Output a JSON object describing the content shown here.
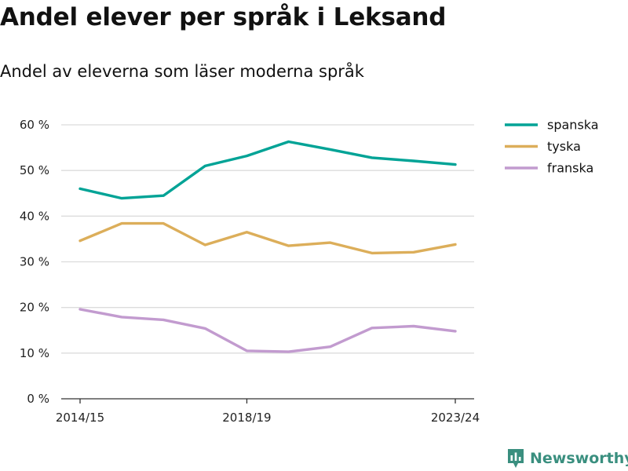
{
  "title": "Andel elever per språk i Leksand",
  "subtitle": "Andel av eleverna som läser moderna språk",
  "brand": {
    "name": "Newsworthy",
    "icon": "newsworthy-logo-icon",
    "color": "#3a8f7f"
  },
  "chart_data": {
    "type": "line",
    "title": "Andel elever per språk i Leksand",
    "subtitle": "Andel av eleverna som läser moderna språk",
    "x": [
      "2014/15",
      "2015/16",
      "2016/17",
      "2017/18",
      "2018/19",
      "2019/20",
      "2020/21",
      "2021/22",
      "2022/23",
      "2023/24"
    ],
    "x_tick_labels": [
      "2014/15",
      "2018/19",
      "2023/24"
    ],
    "y_tick_labels": [
      "0 %",
      "10 %",
      "20 %",
      "30 %",
      "40 %",
      "50 %",
      "60 %"
    ],
    "ylim": [
      0,
      60
    ],
    "y_unit": "%",
    "grid": true,
    "legend_position": "right",
    "series": [
      {
        "name": "spanska",
        "color": "#00a396",
        "values": [
          46.0,
          43.9,
          44.5,
          51.0,
          53.2,
          56.3,
          54.6,
          52.8,
          52.1,
          51.3
        ]
      },
      {
        "name": "tyska",
        "color": "#dcae5a",
        "values": [
          34.6,
          38.4,
          38.4,
          33.7,
          36.5,
          33.5,
          34.2,
          31.9,
          32.1,
          33.8
        ]
      },
      {
        "name": "franska",
        "color": "#c29bcf",
        "values": [
          19.6,
          17.9,
          17.3,
          15.4,
          10.5,
          10.3,
          11.4,
          15.5,
          15.9,
          14.8
        ]
      }
    ]
  }
}
